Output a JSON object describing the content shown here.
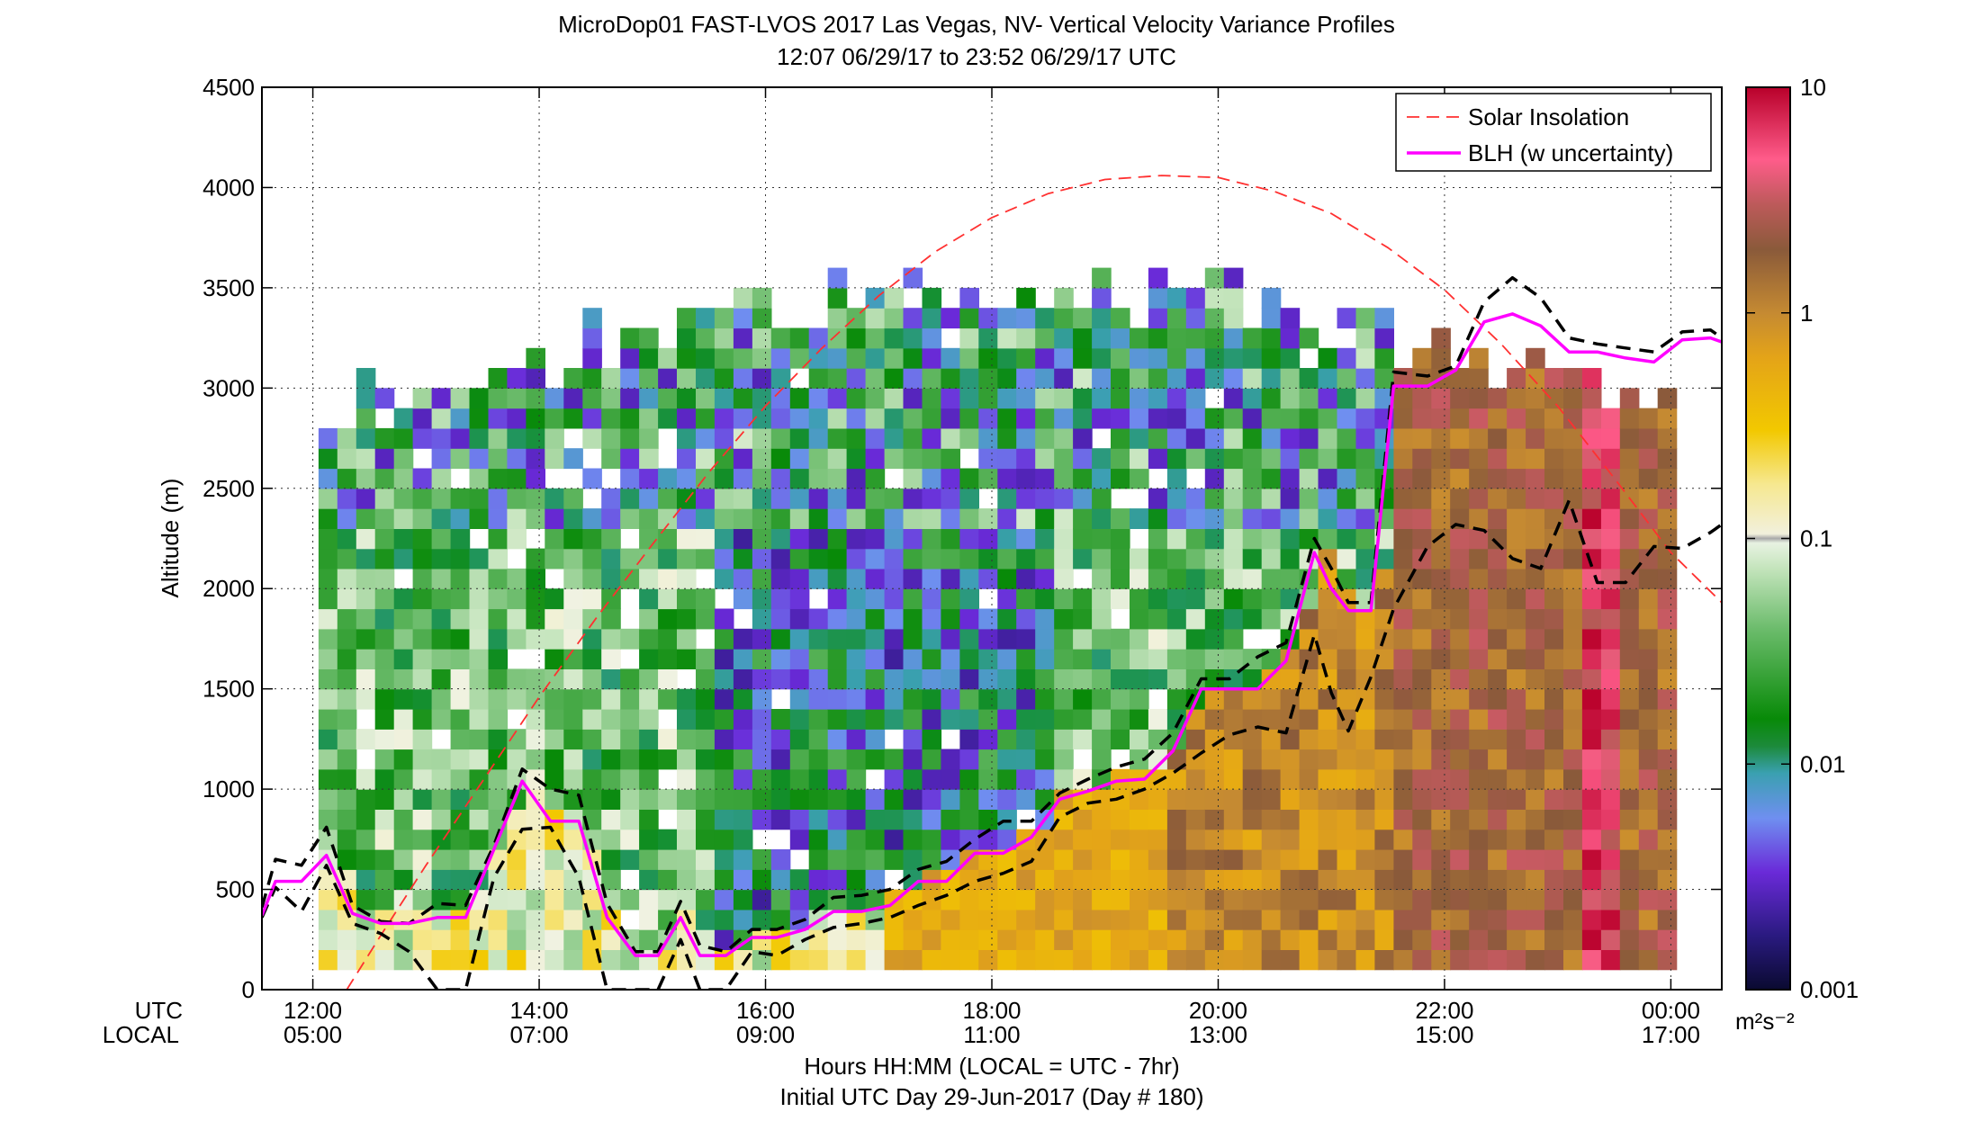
{
  "chart_data": {
    "type": "heatmap",
    "title": "MicroDop01 FAST-LVOS 2017 Las Vegas, NV- Vertical Velocity Variance Profiles",
    "subtitle": "12:07 06/29/17 to 23:52 06/29/17  UTC",
    "ylabel": "Altitude (m)",
    "xlabel": "Hours HH:MM  (LOCAL = UTC - 7hr)",
    "xlabel2": "Initial UTC Day 29-Jun-2017 (Day # 180)",
    "utc_row_label": "UTC",
    "local_row_label": "LOCAL",
    "xlim": [
      11.55,
      24.45
    ],
    "ylim": [
      0,
      4500
    ],
    "x_ticks": [
      {
        "x": 12,
        "utc": "12:00",
        "local": "05:00"
      },
      {
        "x": 14,
        "utc": "14:00",
        "local": "07:00"
      },
      {
        "x": 16,
        "utc": "16:00",
        "local": "09:00"
      },
      {
        "x": 18,
        "utc": "18:00",
        "local": "11:00"
      },
      {
        "x": 20,
        "utc": "20:00",
        "local": "13:00"
      },
      {
        "x": 22,
        "utc": "22:00",
        "local": "15:00"
      },
      {
        "x": 24,
        "utc": "00:00",
        "local": "17:00"
      }
    ],
    "y_ticks": [
      0,
      500,
      1000,
      1500,
      2000,
      2500,
      3000,
      3500,
      4000,
      4500
    ],
    "grid": true,
    "legend_position": "top-right",
    "legend": [
      {
        "label": "Solar Insolation",
        "color": "#ff3030",
        "style": "dashed"
      },
      {
        "label": "BLH (w uncertainty)",
        "color": "#ff00ff",
        "style": "solid"
      }
    ],
    "colorbar": {
      "scale": "log",
      "range": [
        0.001,
        10
      ],
      "tick_labels": [
        "10",
        "1",
        "0.1",
        "0.01",
        "0.001"
      ],
      "unit": "m²s⁻²"
    },
    "series": [
      {
        "name": "BLH (w uncertainty)",
        "color": "#ff00ff",
        "x": [
          11.55,
          11.67,
          11.9,
          12.12,
          12.35,
          12.6,
          12.85,
          13.1,
          13.35,
          13.6,
          13.85,
          14.1,
          14.35,
          14.6,
          14.85,
          15.05,
          15.25,
          15.42,
          15.65,
          15.88,
          16.1,
          16.35,
          16.6,
          16.85,
          17.1,
          17.35,
          17.6,
          17.85,
          18.1,
          18.35,
          18.6,
          18.85,
          19.1,
          19.35,
          19.6,
          19.85,
          20.1,
          20.35,
          20.6,
          20.85,
          21.0,
          21.15,
          21.35,
          21.55,
          21.85,
          22.1,
          22.35,
          22.6,
          22.85,
          23.1,
          23.35,
          23.6,
          23.85,
          24.1,
          24.35,
          24.45
        ],
        "y": [
          370,
          540,
          540,
          670,
          380,
          330,
          330,
          360,
          360,
          700,
          1040,
          840,
          840,
          360,
          170,
          170,
          360,
          170,
          170,
          260,
          260,
          300,
          390,
          390,
          420,
          540,
          540,
          680,
          680,
          760,
          950,
          990,
          1040,
          1050,
          1190,
          1500,
          1500,
          1500,
          1640,
          2180,
          2000,
          1890,
          1890,
          3010,
          3010,
          3090,
          3330,
          3370,
          3310,
          3180,
          3180,
          3150,
          3130,
          3240,
          3250,
          3230
        ]
      },
      {
        "name": "BLH upper bound",
        "color": "#000000",
        "x": [
          11.55,
          11.67,
          11.9,
          12.12,
          12.35,
          12.6,
          12.85,
          13.1,
          13.35,
          13.6,
          13.85,
          14.1,
          14.35,
          14.6,
          14.85,
          15.05,
          15.25,
          15.42,
          15.65,
          15.88,
          16.1,
          16.35,
          16.6,
          16.85,
          17.1,
          17.35,
          17.6,
          17.85,
          18.1,
          18.35,
          18.6,
          18.85,
          19.1,
          19.35,
          19.6,
          19.85,
          20.1,
          20.35,
          20.6,
          20.85,
          21.0,
          21.15,
          21.35,
          21.55,
          21.85,
          22.1,
          22.35,
          22.6,
          22.85,
          23.1,
          23.35,
          23.6,
          23.85,
          24.1,
          24.35,
          24.45
        ],
        "y": [
          410,
          650,
          620,
          810,
          420,
          340,
          330,
          430,
          420,
          720,
          1100,
          1000,
          970,
          430,
          190,
          190,
          440,
          220,
          190,
          300,
          300,
          350,
          460,
          470,
          500,
          600,
          640,
          750,
          840,
          840,
          980,
          1050,
          1110,
          1150,
          1280,
          1550,
          1550,
          1660,
          1730,
          2250,
          2100,
          1930,
          1930,
          3080,
          3060,
          3110,
          3430,
          3550,
          3450,
          3250,
          3220,
          3200,
          3180,
          3280,
          3290,
          3250
        ]
      },
      {
        "name": "BLH lower bound",
        "color": "#000000",
        "x": [
          11.55,
          11.67,
          11.9,
          12.12,
          12.35,
          12.6,
          12.85,
          13.1,
          13.35,
          13.6,
          13.85,
          14.1,
          14.35,
          14.6,
          14.85,
          15.05,
          15.25,
          15.42,
          15.65,
          15.88,
          16.1,
          16.35,
          16.6,
          16.85,
          17.1,
          17.35,
          17.6,
          17.85,
          18.1,
          18.35,
          18.6,
          18.85,
          19.1,
          19.35,
          19.6,
          19.85,
          20.1,
          20.35,
          20.6,
          20.85,
          21.0,
          21.15,
          21.35,
          21.55,
          21.85,
          22.1,
          22.35,
          22.6,
          22.85,
          23.1,
          23.35,
          23.6,
          23.85,
          24.1,
          24.35,
          24.45
        ],
        "y": [
          360,
          510,
          390,
          620,
          330,
          280,
          190,
          0,
          0,
          560,
          800,
          810,
          560,
          0,
          0,
          0,
          250,
          0,
          0,
          190,
          170,
          250,
          310,
          330,
          360,
          420,
          470,
          540,
          580,
          640,
          860,
          930,
          950,
          1000,
          1080,
          1180,
          1270,
          1310,
          1280,
          1770,
          1480,
          1290,
          1560,
          1900,
          2210,
          2320,
          2290,
          2150,
          2100,
          2440,
          2030,
          2030,
          2210,
          2200,
          2280,
          2320
        ]
      },
      {
        "name": "Solar Insolation",
        "color": "#ff3030",
        "x": [
          12.3,
          12.6,
          13.0,
          13.5,
          14.0,
          14.5,
          15.0,
          15.5,
          16.0,
          16.5,
          17.0,
          17.5,
          18.0,
          18.5,
          19.0,
          19.5,
          20.0,
          20.5,
          21.0,
          21.5,
          22.0,
          22.5,
          23.0,
          23.5,
          24.0,
          24.45
        ],
        "y": [
          0,
          270,
          620,
          1040,
          1460,
          1850,
          2220,
          2580,
          2910,
          3200,
          3460,
          3680,
          3850,
          3970,
          4040,
          4060,
          4050,
          3980,
          3870,
          3700,
          3490,
          3220,
          2910,
          2550,
          2180,
          1930
        ]
      }
    ]
  }
}
